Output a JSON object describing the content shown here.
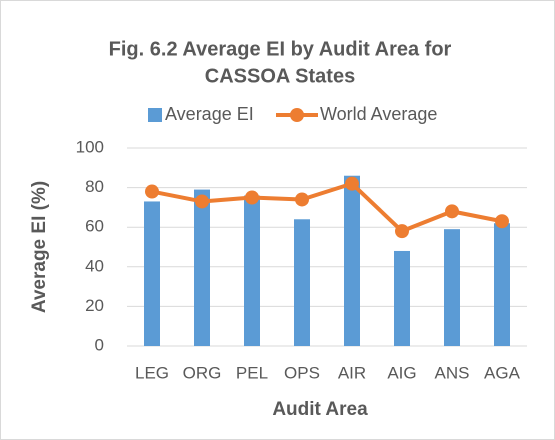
{
  "chart_data": {
    "type": "bar",
    "title": [
      "Fig. 6.2 Average EI by Audit Area for",
      "CASSOA States"
    ],
    "x_label": "Audit Area",
    "y_label": "Average EI (%)",
    "categories": [
      "LEG",
      "ORG",
      "PEL",
      "OPS",
      "AIR",
      "AIG",
      "ANS",
      "AGA"
    ],
    "series": [
      {
        "name": "Average EI",
        "type": "bar",
        "color": "#5b9bd5",
        "values": [
          73,
          79,
          76,
          64,
          86,
          48,
          59,
          62
        ]
      },
      {
        "name": "World Average",
        "type": "line",
        "color": "#ed7d31",
        "values": [
          78,
          73,
          75,
          74,
          82,
          58,
          68,
          63
        ]
      }
    ],
    "ylim": [
      0,
      100
    ],
    "yticks": [
      0,
      20,
      40,
      60,
      80,
      100
    ],
    "legend": "top"
  }
}
